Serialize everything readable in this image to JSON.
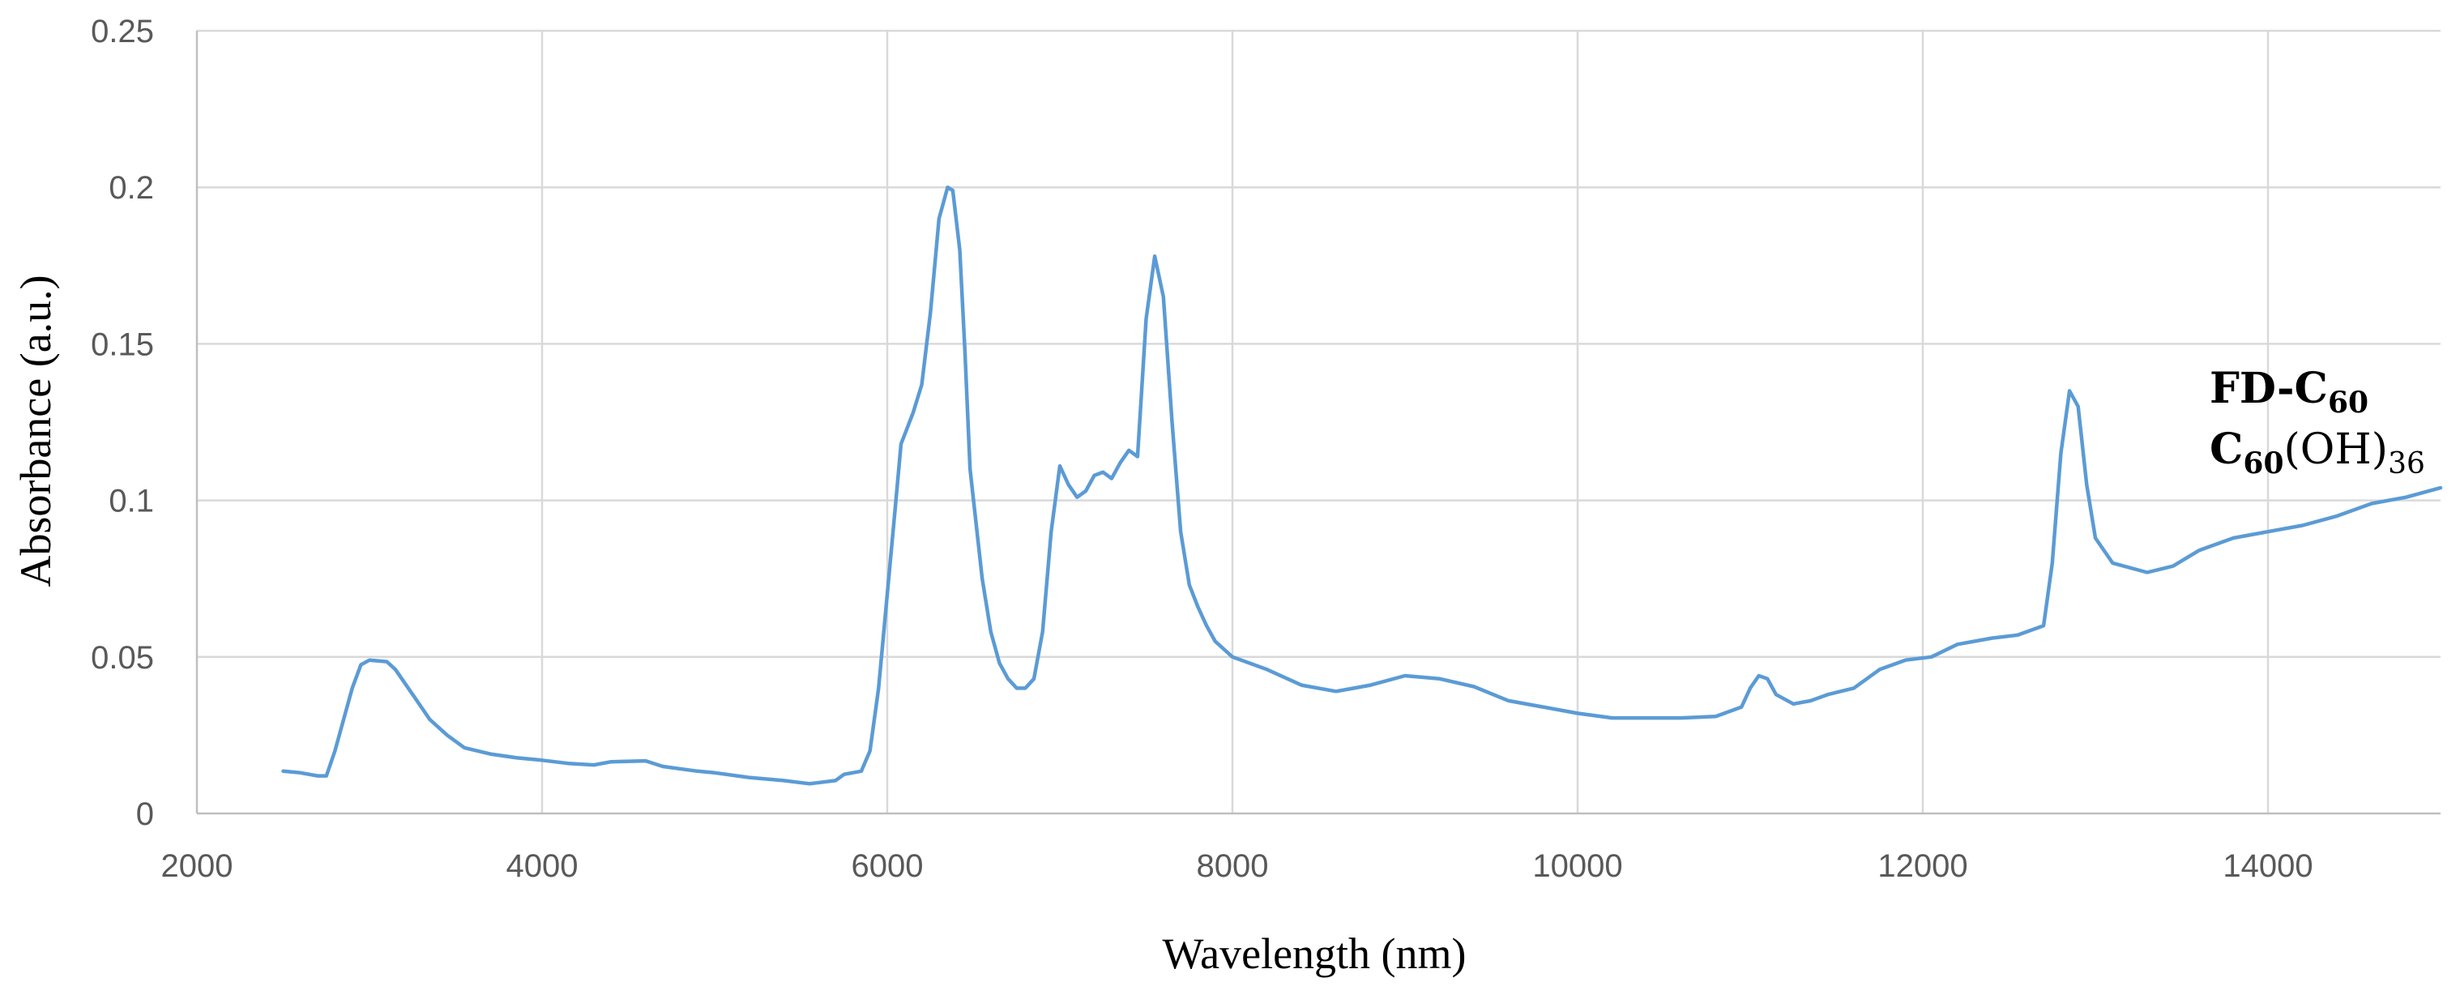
{
  "chart_data": {
    "type": "line",
    "title": "",
    "xlabel": "Wavelength (nm)",
    "ylabel": "Absorbance (a.u.)",
    "xlim": [
      2000,
      15000
    ],
    "ylim": [
      0,
      0.25
    ],
    "x_ticks": [
      "2000",
      "4000",
      "6000",
      "8000",
      "10000",
      "12000",
      "14000"
    ],
    "y_ticks": [
      "0",
      "0.05",
      "0.1",
      "0.15",
      "0.2",
      "0.25"
    ],
    "grid": true,
    "legend_placement": "right",
    "annotation": {
      "line1": "FD-C",
      "line1_sub": "60",
      "line2": "C",
      "line2_sub": "60",
      "line2_rest": "(OH)",
      "line2_rest_sub": "36"
    },
    "series": [
      {
        "color": "#5b9bd5",
        "points": [
          [
            2500,
            0.0135
          ],
          [
            2600,
            0.013
          ],
          [
            2700,
            0.012
          ],
          [
            2750,
            0.012
          ],
          [
            2800,
            0.02
          ],
          [
            2900,
            0.04
          ],
          [
            2950,
            0.0475
          ],
          [
            3000,
            0.049
          ],
          [
            3100,
            0.0485
          ],
          [
            3150,
            0.046
          ],
          [
            3250,
            0.038
          ],
          [
            3350,
            0.03
          ],
          [
            3450,
            0.025
          ],
          [
            3550,
            0.021
          ],
          [
            3700,
            0.019
          ],
          [
            3850,
            0.0178
          ],
          [
            4000,
            0.017
          ],
          [
            4150,
            0.016
          ],
          [
            4300,
            0.0155
          ],
          [
            4400,
            0.0165
          ],
          [
            4600,
            0.0168
          ],
          [
            4700,
            0.015
          ],
          [
            4900,
            0.0135
          ],
          [
            5000,
            0.013
          ],
          [
            5200,
            0.0115
          ],
          [
            5400,
            0.0105
          ],
          [
            5550,
            0.0095
          ],
          [
            5700,
            0.0105
          ],
          [
            5750,
            0.0125
          ],
          [
            5850,
            0.0135
          ],
          [
            5900,
            0.02
          ],
          [
            5950,
            0.04
          ],
          [
            6000,
            0.07
          ],
          [
            6050,
            0.1
          ],
          [
            6080,
            0.118
          ],
          [
            6150,
            0.128
          ],
          [
            6200,
            0.137
          ],
          [
            6250,
            0.16
          ],
          [
            6300,
            0.19
          ],
          [
            6350,
            0.2
          ],
          [
            6380,
            0.199
          ],
          [
            6420,
            0.18
          ],
          [
            6450,
            0.148
          ],
          [
            6480,
            0.11
          ],
          [
            6550,
            0.075
          ],
          [
            6600,
            0.058
          ],
          [
            6650,
            0.048
          ],
          [
            6700,
            0.043
          ],
          [
            6750,
            0.04
          ],
          [
            6800,
            0.04
          ],
          [
            6850,
            0.043
          ],
          [
            6900,
            0.058
          ],
          [
            6950,
            0.09
          ],
          [
            7000,
            0.111
          ],
          [
            7050,
            0.105
          ],
          [
            7100,
            0.101
          ],
          [
            7150,
            0.103
          ],
          [
            7200,
            0.108
          ],
          [
            7250,
            0.109
          ],
          [
            7300,
            0.107
          ],
          [
            7350,
            0.112
          ],
          [
            7400,
            0.116
          ],
          [
            7450,
            0.114
          ],
          [
            7500,
            0.158
          ],
          [
            7550,
            0.178
          ],
          [
            7600,
            0.165
          ],
          [
            7650,
            0.125
          ],
          [
            7700,
            0.09
          ],
          [
            7750,
            0.073
          ],
          [
            7800,
            0.066
          ],
          [
            7850,
            0.06
          ],
          [
            7900,
            0.055
          ],
          [
            8000,
            0.05
          ],
          [
            8200,
            0.046
          ],
          [
            8400,
            0.041
          ],
          [
            8600,
            0.039
          ],
          [
            8800,
            0.041
          ],
          [
            9000,
            0.044
          ],
          [
            9200,
            0.043
          ],
          [
            9400,
            0.0405
          ],
          [
            9600,
            0.036
          ],
          [
            9800,
            0.034
          ],
          [
            10000,
            0.032
          ],
          [
            10200,
            0.0305
          ],
          [
            10400,
            0.0305
          ],
          [
            10600,
            0.0305
          ],
          [
            10800,
            0.031
          ],
          [
            10950,
            0.034
          ],
          [
            11000,
            0.04
          ],
          [
            11050,
            0.044
          ],
          [
            11100,
            0.043
          ],
          [
            11150,
            0.038
          ],
          [
            11250,
            0.035
          ],
          [
            11350,
            0.036
          ],
          [
            11450,
            0.038
          ],
          [
            11600,
            0.04
          ],
          [
            11750,
            0.046
          ],
          [
            11900,
            0.049
          ],
          [
            12050,
            0.05
          ],
          [
            12200,
            0.054
          ],
          [
            12400,
            0.056
          ],
          [
            12550,
            0.057
          ],
          [
            12700,
            0.06
          ],
          [
            12750,
            0.08
          ],
          [
            12800,
            0.115
          ],
          [
            12850,
            0.135
          ],
          [
            12900,
            0.13
          ],
          [
            12950,
            0.105
          ],
          [
            13000,
            0.088
          ],
          [
            13100,
            0.08
          ],
          [
            13300,
            0.077
          ],
          [
            13450,
            0.079
          ],
          [
            13600,
            0.084
          ],
          [
            13800,
            0.088
          ],
          [
            14000,
            0.09
          ],
          [
            14200,
            0.092
          ],
          [
            14400,
            0.095
          ],
          [
            14600,
            0.099
          ],
          [
            14800,
            0.101
          ],
          [
            15000,
            0.104
          ]
        ]
      }
    ]
  }
}
